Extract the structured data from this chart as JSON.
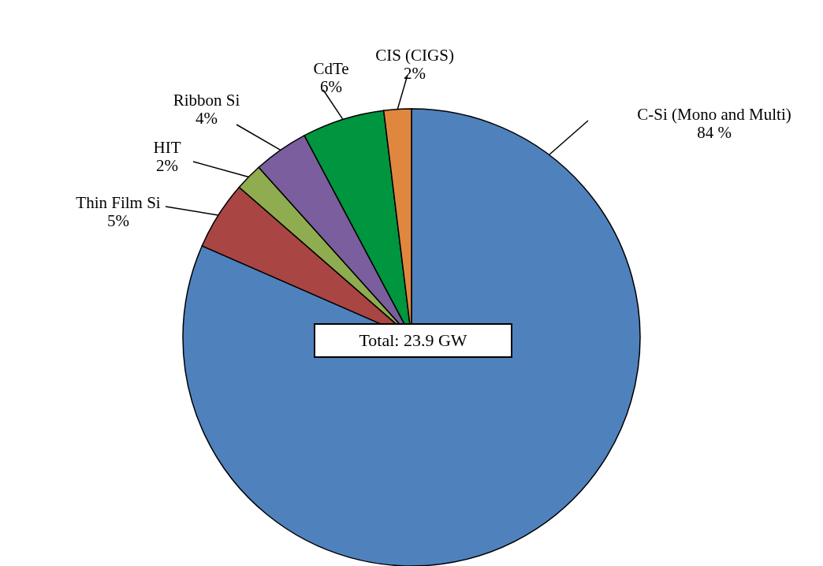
{
  "chart_data": {
    "type": "pie",
    "categories": [
      "C-Si (Mono and Multi)",
      "Thin Film Si",
      "HIT",
      "Ribbon Si",
      "CdTe",
      "CIS (CIGS)"
    ],
    "values": [
      84,
      5,
      2,
      4,
      6,
      2
    ],
    "value_labels": [
      "84 %",
      "5%",
      "2%",
      "4%",
      "6%",
      "2%"
    ],
    "colors": [
      "#4f81bd",
      "#a94543",
      "#8fac50",
      "#7a5e9e",
      "#00953f",
      "#e0873f"
    ],
    "annotations": [
      "Total: 23.9 GW"
    ]
  }
}
